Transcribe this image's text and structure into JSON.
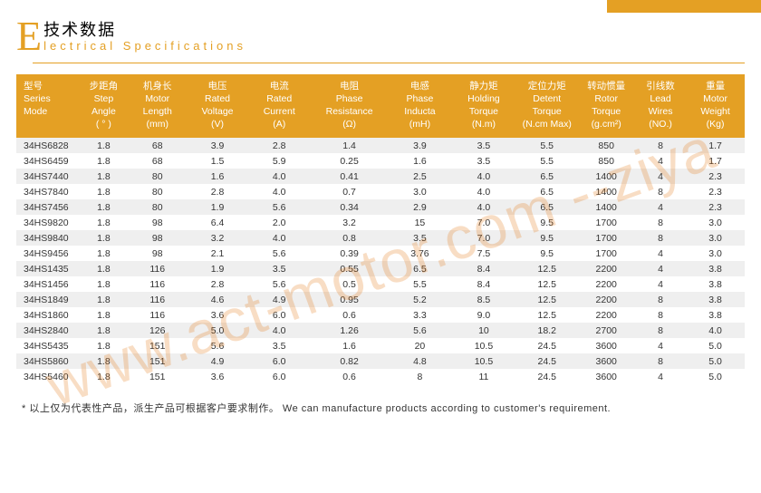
{
  "colors": {
    "accent": "#e4a024",
    "header_bg": "#e4a024",
    "header_text": "#ffffff",
    "row_odd": "#efefef",
    "row_even": "#ffffff",
    "watermark": "rgba(228,120,20,0.25)",
    "text": "#333333"
  },
  "title": {
    "big_letter": "E",
    "cn": "技术数据",
    "en": "lectrical Specifications"
  },
  "watermark": "www.act-motor.com --ziya",
  "footnote": "* 以上仅为代表性产品，派生产品可根据客户要求制作。 We can manufacture products according to customer's requirement.",
  "table": {
    "columns": [
      {
        "cn": "型号",
        "en": "Series Mode",
        "unit": ""
      },
      {
        "cn": "步距角",
        "en": "Step Angle",
        "unit": "( ° )"
      },
      {
        "cn": "机身长",
        "en": "Motor Length",
        "unit": "(mm)"
      },
      {
        "cn": "电压",
        "en": "Rated Voltage",
        "unit": "(V)"
      },
      {
        "cn": "电流",
        "en": "Rated Current",
        "unit": "(A)"
      },
      {
        "cn": "电阻",
        "en": "Phase Resistance",
        "unit": "(Ω)"
      },
      {
        "cn": "电感",
        "en": "Phase Inducta",
        "unit": "(mH)"
      },
      {
        "cn": "静力矩",
        "en": "Holding Torque",
        "unit": "(N.m)"
      },
      {
        "cn": "定位力矩",
        "en": "Detent Torque",
        "unit": "(N.cm Max)"
      },
      {
        "cn": "转动惯量",
        "en": "Rotor Torque",
        "unit": "(g.cm²)"
      },
      {
        "cn": "引线数",
        "en": "Lead Wires",
        "unit": "(NO.)"
      },
      {
        "cn": "重量",
        "en": "Motor Weight",
        "unit": "(Kg)"
      }
    ],
    "rows": [
      [
        "34HS6828",
        "1.8",
        "68",
        "3.9",
        "2.8",
        "1.4",
        "3.9",
        "3.5",
        "5.5",
        "850",
        "8",
        "1.7"
      ],
      [
        "34HS6459",
        "1.8",
        "68",
        "1.5",
        "5.9",
        "0.25",
        "1.6",
        "3.5",
        "5.5",
        "850",
        "4",
        "1.7"
      ],
      [
        "34HS7440",
        "1.8",
        "80",
        "1.6",
        "4.0",
        "0.41",
        "2.5",
        "4.0",
        "6.5",
        "1400",
        "4",
        "2.3"
      ],
      [
        "34HS7840",
        "1.8",
        "80",
        "2.8",
        "4.0",
        "0.7",
        "3.0",
        "4.0",
        "6.5",
        "1400",
        "8",
        "2.3"
      ],
      [
        "34HS7456",
        "1.8",
        "80",
        "1.9",
        "5.6",
        "0.34",
        "2.9",
        "4.0",
        "6.5",
        "1400",
        "4",
        "2.3"
      ],
      [
        "34HS9820",
        "1.8",
        "98",
        "6.4",
        "2.0",
        "3.2",
        "15",
        "7.0",
        "9.5",
        "1700",
        "8",
        "3.0"
      ],
      [
        "34HS9840",
        "1.8",
        "98",
        "3.2",
        "4.0",
        "0.8",
        "3.5",
        "7.0",
        "9.5",
        "1700",
        "8",
        "3.0"
      ],
      [
        "34HS9456",
        "1.8",
        "98",
        "2.1",
        "5.6",
        "0.39",
        "3.76",
        "7.5",
        "9.5",
        "1700",
        "4",
        "3.0"
      ],
      [
        "34HS1435",
        "1.8",
        "116",
        "1.9",
        "3.5",
        "0.55",
        "6.5",
        "8.4",
        "12.5",
        "2200",
        "4",
        "3.8"
      ],
      [
        "34HS1456",
        "1.8",
        "116",
        "2.8",
        "5.6",
        "0.5",
        "5.5",
        "8.4",
        "12.5",
        "2200",
        "4",
        "3.8"
      ],
      [
        "34HS1849",
        "1.8",
        "116",
        "4.6",
        "4.9",
        "0.95",
        "5.2",
        "8.5",
        "12.5",
        "2200",
        "8",
        "3.8"
      ],
      [
        "34HS1860",
        "1.8",
        "116",
        "3.6",
        "6.0",
        "0.6",
        "3.3",
        "9.0",
        "12.5",
        "2200",
        "8",
        "3.8"
      ],
      [
        "34HS2840",
        "1.8",
        "126",
        "5.0",
        "4.0",
        "1.26",
        "5.6",
        "10",
        "18.2",
        "2700",
        "8",
        "4.0"
      ],
      [
        "34HS5435",
        "1.8",
        "151",
        "5.6",
        "3.5",
        "1.6",
        "20",
        "10.5",
        "24.5",
        "3600",
        "4",
        "5.0"
      ],
      [
        "34HS5860",
        "1.8",
        "151",
        "4.9",
        "6.0",
        "0.82",
        "4.8",
        "10.5",
        "24.5",
        "3600",
        "8",
        "5.0"
      ],
      [
        "34HS5460",
        "1.8",
        "151",
        "3.6",
        "6.0",
        "0.6",
        "8",
        "11",
        "24.5",
        "3600",
        "4",
        "5.0"
      ]
    ]
  }
}
